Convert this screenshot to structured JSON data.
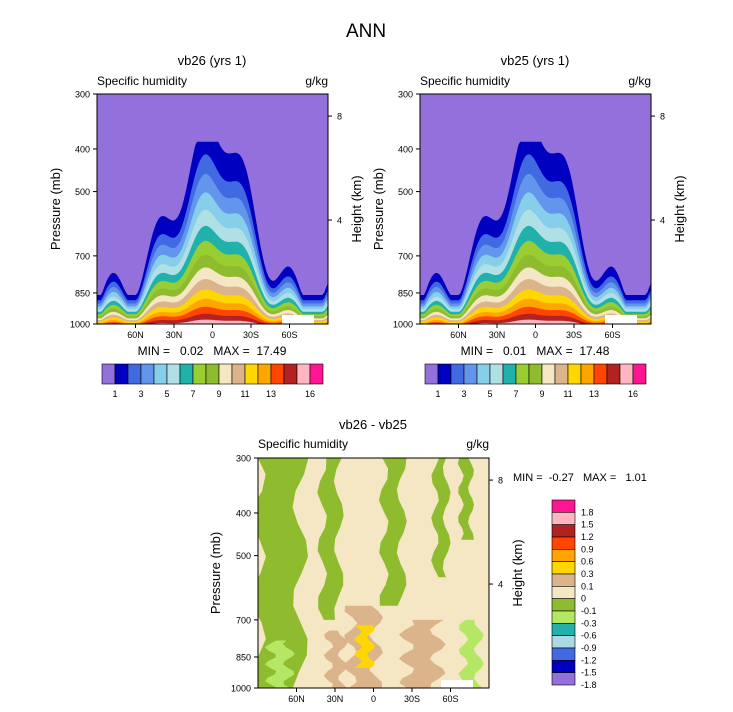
{
  "figure": {
    "title": "ANN"
  },
  "chart_data": [
    {
      "type": "contour",
      "id": "vb26",
      "title": "vb26 (yrs 1)",
      "left_label": "Specific humidity",
      "right_label": "g/kg",
      "xlabel": "",
      "ylabel": "Pressure (mb)",
      "y2label": "Height (km)",
      "x_ticks": [
        "60N",
        "30N",
        "0",
        "30S",
        "60S"
      ],
      "x_tick_values": [
        60,
        30,
        0,
        -30,
        -60
      ],
      "xlim": [
        90,
        -90
      ],
      "y_ticks": [
        "300",
        "400",
        "500",
        "700",
        "850",
        "1000"
      ],
      "y_tick_values": [
        300,
        400,
        500,
        700,
        850,
        1000
      ],
      "ylim": [
        300,
        1000
      ],
      "y2_ticks": [
        "8",
        "4"
      ],
      "y2_tick_values": [
        8,
        4
      ],
      "stats": "MIN =   0.02   MAX =  17.49",
      "levels": [
        1,
        2,
        3,
        4,
        5,
        6,
        7,
        8,
        9,
        10,
        11,
        12,
        13,
        14,
        16
      ],
      "colorbar_labels": [
        "1",
        "3",
        "5",
        "7",
        "9",
        "11",
        "13",
        "16"
      ]
    },
    {
      "type": "contour",
      "id": "vb25",
      "title": "vb25 (yrs 1)",
      "left_label": "Specific humidity",
      "right_label": "g/kg",
      "xlabel": "",
      "ylabel": "Pressure (mb)",
      "y2label": "Height (km)",
      "x_ticks": [
        "60N",
        "30N",
        "0",
        "30S",
        "60S"
      ],
      "x_tick_values": [
        60,
        30,
        0,
        -30,
        -60
      ],
      "xlim": [
        90,
        -90
      ],
      "y_ticks": [
        "300",
        "400",
        "500",
        "700",
        "850",
        "1000"
      ],
      "y_tick_values": [
        300,
        400,
        500,
        700,
        850,
        1000
      ],
      "ylim": [
        300,
        1000
      ],
      "y2_ticks": [
        "8",
        "4"
      ],
      "y2_tick_values": [
        8,
        4
      ],
      "stats": "MIN =   0.01   MAX =  17.48",
      "levels": [
        1,
        2,
        3,
        4,
        5,
        6,
        7,
        8,
        9,
        10,
        11,
        12,
        13,
        14,
        16
      ],
      "colorbar_labels": [
        "1",
        "3",
        "5",
        "7",
        "9",
        "11",
        "13",
        "16"
      ]
    },
    {
      "type": "contour",
      "id": "diff",
      "title": "vb26 - vb25",
      "left_label": "Specific humidity",
      "right_label": "g/kg",
      "xlabel": "",
      "ylabel": "Pressure (mb)",
      "y2label": "Height (km)",
      "x_ticks": [
        "60N",
        "30N",
        "0",
        "30S",
        "60S"
      ],
      "x_tick_values": [
        60,
        30,
        0,
        -30,
        -60
      ],
      "xlim": [
        90,
        -90
      ],
      "y_ticks": [
        "300",
        "400",
        "500",
        "700",
        "850",
        "1000"
      ],
      "y_tick_values": [
        300,
        400,
        500,
        700,
        850,
        1000
      ],
      "ylim": [
        300,
        1000
      ],
      "y2_ticks": [
        "8",
        "4"
      ],
      "y2_tick_values": [
        8,
        4
      ],
      "stats": "MIN =  -0.27   MAX =   1.01",
      "levels": [
        -1.8,
        -1.5,
        -1.2,
        -0.9,
        -0.6,
        -0.3,
        -0.1,
        0,
        0.1,
        0.3,
        0.6,
        0.9,
        1.2,
        1.5,
        1.8
      ],
      "colorbar_labels": [
        "1.8",
        "1.5",
        "1.2",
        "0.9",
        "0.6",
        "0.3",
        "0.1",
        "0",
        "-0.1",
        "-0.3",
        "-0.6",
        "-0.9",
        "-1.2",
        "-1.5",
        "-1.8"
      ]
    }
  ],
  "colors": {
    "abs_palette": [
      "#9370db",
      "#0000c0",
      "#4169e1",
      "#6495ed",
      "#87ceeb",
      "#b0e0e6",
      "#20b2aa",
      "#9acd32",
      "#8fbc2f",
      "#f5e6c4",
      "#dcb48c",
      "#ffd700",
      "#ffa500",
      "#ff4500",
      "#b22222",
      "#ffb6c1",
      "#ff1493"
    ],
    "diff_palette": [
      "#ff1493",
      "#ffb6c1",
      "#b22222",
      "#ff4500",
      "#ffa500",
      "#ffd700",
      "#dcb48c",
      "#f5e6c4",
      "#8fbc2f",
      "#b4e864",
      "#20b2aa",
      "#add8e6",
      "#4169e1",
      "#0000c0",
      "#9370db"
    ]
  }
}
